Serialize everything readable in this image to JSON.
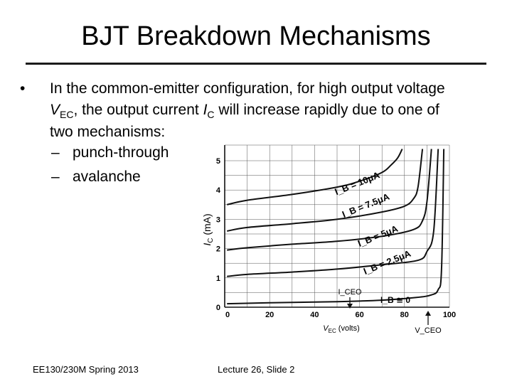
{
  "slide": {
    "title": "BJT Breakdown Mechanisms",
    "bullet": {
      "marker": "•",
      "line1": "In the common-emitter configuration, for high output voltage",
      "v_sym": "V",
      "v_sub": "EC",
      "line2_a": ", the output current ",
      "i_sym": "I",
      "i_sub": "C",
      "line2_b": " will increase rapidly due to one of",
      "line3": "two mechanisms:"
    },
    "subitems": [
      {
        "dash": "–",
        "label": "punch-through"
      },
      {
        "dash": "–",
        "label": "avalanche"
      }
    ],
    "footer_left": "EE130/230M Spring 2013",
    "footer_center": "Lecture 26, Slide 2"
  },
  "chart_data": {
    "type": "line",
    "xlabel": "V_EC (volts)",
    "ylabel": "I_C (mA)",
    "xlim": [
      0,
      100
    ],
    "ylim": [
      0,
      5
    ],
    "x_ticks": [
      "0",
      "20",
      "40",
      "60",
      "80",
      "100"
    ],
    "y_ticks": [
      "0",
      "1",
      "2",
      "3",
      "4",
      "5"
    ],
    "series": [
      {
        "name": "I_B = 10μA",
        "x": [
          1,
          10,
          30,
          50,
          60,
          70,
          74,
          77,
          79
        ],
        "y": [
          3.5,
          3.65,
          3.85,
          4.1,
          4.3,
          4.6,
          4.85,
          5.1,
          5.4
        ]
      },
      {
        "name": "I_B = 7.5μA",
        "x": [
          1,
          10,
          30,
          50,
          70,
          80,
          84,
          86,
          88
        ],
        "y": [
          2.6,
          2.72,
          2.85,
          3.0,
          3.25,
          3.45,
          3.7,
          4.1,
          5.4
        ]
      },
      {
        "name": "I_B = 5μA",
        "x": [
          1,
          10,
          30,
          50,
          70,
          84,
          88,
          90,
          92
        ],
        "y": [
          1.95,
          2.03,
          2.15,
          2.25,
          2.42,
          2.65,
          2.95,
          3.6,
          5.4
        ]
      },
      {
        "name": "I_B = 2.5μA",
        "x": [
          1,
          10,
          30,
          50,
          70,
          86,
          90,
          93,
          95
        ],
        "y": [
          1.05,
          1.12,
          1.2,
          1.3,
          1.45,
          1.6,
          1.9,
          2.6,
          5.4
        ]
      },
      {
        "name": "I_B ≅ 0",
        "x": [
          1,
          20,
          50,
          70,
          85,
          92,
          95,
          96.5,
          97.5
        ],
        "y": [
          0.12,
          0.15,
          0.19,
          0.24,
          0.33,
          0.42,
          0.6,
          1.3,
          5.4
        ]
      }
    ],
    "annotations": {
      "ib10": "I_B = 10μA",
      "ib75": "I_B = 7.5μA",
      "ib5": "I_B = 5μA",
      "ib25": "I_B = 2.5μA",
      "ib0": "I_B ≅ 0",
      "iceo": "I_CEO",
      "vceo": "V_CEO"
    },
    "colors": {
      "line": "#111111",
      "grid": "#555555"
    }
  }
}
